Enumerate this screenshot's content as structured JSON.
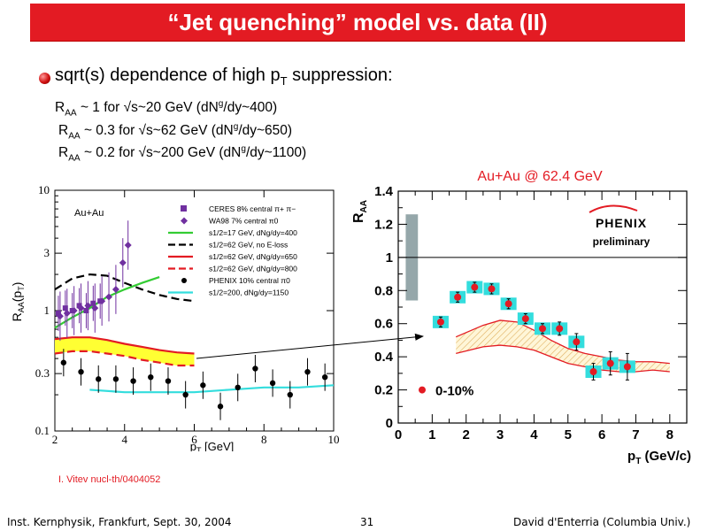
{
  "slide": {
    "title": "“Jet quenching” model vs. data (II)",
    "subtitle_main": "sqrt(s) dependence of high p",
    "subtitle_sub": "T",
    "subtitle_tail": " suppression:",
    "raa_lines": [
      {
        "pre": "R",
        "sub": "AA",
        "mid": " ~ 1 for √s~20 GeV (dN",
        "sup": "g",
        "post": "/dy~400)"
      },
      {
        "pre": "R",
        "sub": "AA",
        "mid": " ~ 0.3 for √s~62 GeV (dN",
        "sup": "g",
        "post": "/dy~650)"
      },
      {
        "pre": "R",
        "sub": "AA",
        "mid": " ~ 0.2 for √s~200 GeV (dN",
        "sup": "g",
        "post": "/dy~1100)"
      }
    ],
    "citation": "I. Vitev nucl-th/0404052",
    "footer_left": "Inst. Kernphysik, Frankfurt, Sept. 30, 2004",
    "footer_center": "31",
    "footer_right": "David d'Enterria (Columbia Univ.)",
    "accent_color": "#e31b23"
  },
  "chart_data": [
    {
      "type": "scatter",
      "panel_label": "Au+Au",
      "xlabel": "p_T [GeV]",
      "ylabel": "R_AA(p_T)",
      "xlim": [
        2,
        10
      ],
      "ylim": [
        0.1,
        10
      ],
      "yscale": "log",
      "xticks": [
        "2",
        "4",
        "6",
        "8",
        "10"
      ],
      "yticks": [
        "0.1",
        "0.3",
        "1",
        "3",
        "10"
      ],
      "legend": [
        "CERES 8% central π+ π−",
        "WA98 7% central π0",
        "s1/2=17 GeV, dNg/dy=400",
        "s1/2=62 GeV, no E-loss",
        "s1/2=62 GeV, dNg/dy=650",
        "s1/2=62 GeV, dNg/dy=800",
        "PHENIX 10% central π0",
        "s1/2=200, dNg/dy=1150"
      ],
      "series": [
        {
          "name": "CERES 8% central π+ π−",
          "color": "#7030a0",
          "x": [
            2.1,
            2.3,
            2.5,
            2.7,
            2.9,
            3.1,
            3.3
          ],
          "y": [
            0.95,
            1.05,
            1.0,
            1.1,
            1.0,
            1.15,
            1.2
          ]
        },
        {
          "name": "WA98 7% central π0",
          "color": "#7030a0",
          "x": [
            2.15,
            2.35,
            2.55,
            2.75,
            2.95,
            3.15,
            3.35,
            3.55,
            3.75,
            3.95,
            4.1
          ],
          "y": [
            0.9,
            0.95,
            1.0,
            1.05,
            1.1,
            1.05,
            1.2,
            1.3,
            1.5,
            2.5,
            3.5
          ]
        },
        {
          "name": "PHENIX 10% central π0",
          "color": "#000000",
          "x": [
            2.25,
            2.75,
            3.25,
            3.75,
            4.25,
            4.75,
            5.25,
            5.75,
            6.25,
            6.75,
            7.25,
            7.75,
            8.25,
            8.75,
            9.25,
            9.75
          ],
          "y": [
            0.37,
            0.31,
            0.27,
            0.27,
            0.26,
            0.28,
            0.26,
            0.2,
            0.24,
            0.16,
            0.23,
            0.33,
            0.25,
            0.2,
            0.31,
            0.28
          ]
        }
      ],
      "curves": [
        {
          "name": "s1/2=17 GeV, dNg/dy=400",
          "color": "#33cc33",
          "style": "solid",
          "x": [
            2,
            2.5,
            3,
            3.5,
            4,
            4.5,
            5
          ],
          "y": [
            0.72,
            0.88,
            1.05,
            1.3,
            1.5,
            1.7,
            1.9
          ]
        },
        {
          "name": "s1/2=62 GeV, no E-loss",
          "color": "#000000",
          "style": "dashed",
          "x": [
            2,
            2.5,
            3,
            3.5,
            4,
            4.5,
            5,
            5.5,
            6
          ],
          "y": [
            1.5,
            1.85,
            2.0,
            1.95,
            1.7,
            1.5,
            1.35,
            1.25,
            1.2
          ]
        },
        {
          "name": "s1/2=62 GeV, dNg/dy=650",
          "color": "#e31b23",
          "style": "solid",
          "x": [
            2,
            2.5,
            3,
            3.5,
            4,
            4.5,
            5,
            5.5,
            6
          ],
          "y": [
            0.58,
            0.6,
            0.6,
            0.57,
            0.53,
            0.5,
            0.47,
            0.45,
            0.44
          ]
        },
        {
          "name": "s1/2=62 GeV, dNg/dy=800",
          "color": "#e31b23",
          "style": "dashed",
          "x": [
            2,
            2.5,
            3,
            3.5,
            4,
            4.5,
            5,
            5.5,
            6
          ],
          "y": [
            0.44,
            0.46,
            0.46,
            0.44,
            0.42,
            0.39,
            0.37,
            0.35,
            0.35
          ]
        },
        {
          "name": "s1/2=200, dNg/dy=1150",
          "color": "#33dddd",
          "style": "solid",
          "x": [
            3,
            4,
            5,
            6,
            7,
            8,
            9,
            10
          ],
          "y": [
            0.22,
            0.21,
            0.21,
            0.21,
            0.22,
            0.23,
            0.23,
            0.24
          ]
        }
      ]
    },
    {
      "type": "scatter",
      "title": "Au+Au @ 62.4 GeV",
      "xlabel": "p_T (GeV/c)",
      "ylabel": "R_AA",
      "xlim": [
        0,
        8.5
      ],
      "ylim": [
        0,
        1.4
      ],
      "xticks": [
        "0",
        "1",
        "2",
        "3",
        "4",
        "5",
        "6",
        "7",
        "8"
      ],
      "yticks": [
        "0",
        "0.2",
        "0.4",
        "0.6",
        "0.8",
        "1",
        "1.2",
        "1.4"
      ],
      "watermark": "PHENIX preliminary",
      "legend": [
        "0-10%"
      ],
      "series": [
        {
          "name": "0-10%",
          "color": "#e31b23",
          "x": [
            1.25,
            1.75,
            2.25,
            2.75,
            3.25,
            3.75,
            4.25,
            4.75,
            5.25,
            5.75,
            6.25,
            6.75
          ],
          "y": [
            0.61,
            0.76,
            0.82,
            0.81,
            0.72,
            0.63,
            0.57,
            0.57,
            0.49,
            0.31,
            0.36,
            0.34
          ],
          "yerr": [
            0.03,
            0.03,
            0.03,
            0.03,
            0.03,
            0.03,
            0.03,
            0.04,
            0.05,
            0.05,
            0.07,
            0.08
          ]
        }
      ],
      "sys_box_color": "#33dddd",
      "normalization_box": {
        "y_low": 0.74,
        "y_high": 1.26,
        "color": "#95a7aa"
      },
      "theory_band": {
        "color": "#e31b23",
        "x": [
          1.7,
          2.5,
          3.0,
          3.5,
          4.0,
          4.5,
          5.0,
          5.5,
          6.0,
          6.5,
          7.0,
          7.5,
          8.0
        ],
        "upper": [
          0.52,
          0.59,
          0.62,
          0.61,
          0.56,
          0.5,
          0.45,
          0.42,
          0.4,
          0.38,
          0.37,
          0.37,
          0.36
        ],
        "lower": [
          0.42,
          0.46,
          0.47,
          0.46,
          0.44,
          0.4,
          0.36,
          0.34,
          0.32,
          0.31,
          0.31,
          0.32,
          0.31
        ]
      },
      "reference_line": 1.0
    }
  ]
}
